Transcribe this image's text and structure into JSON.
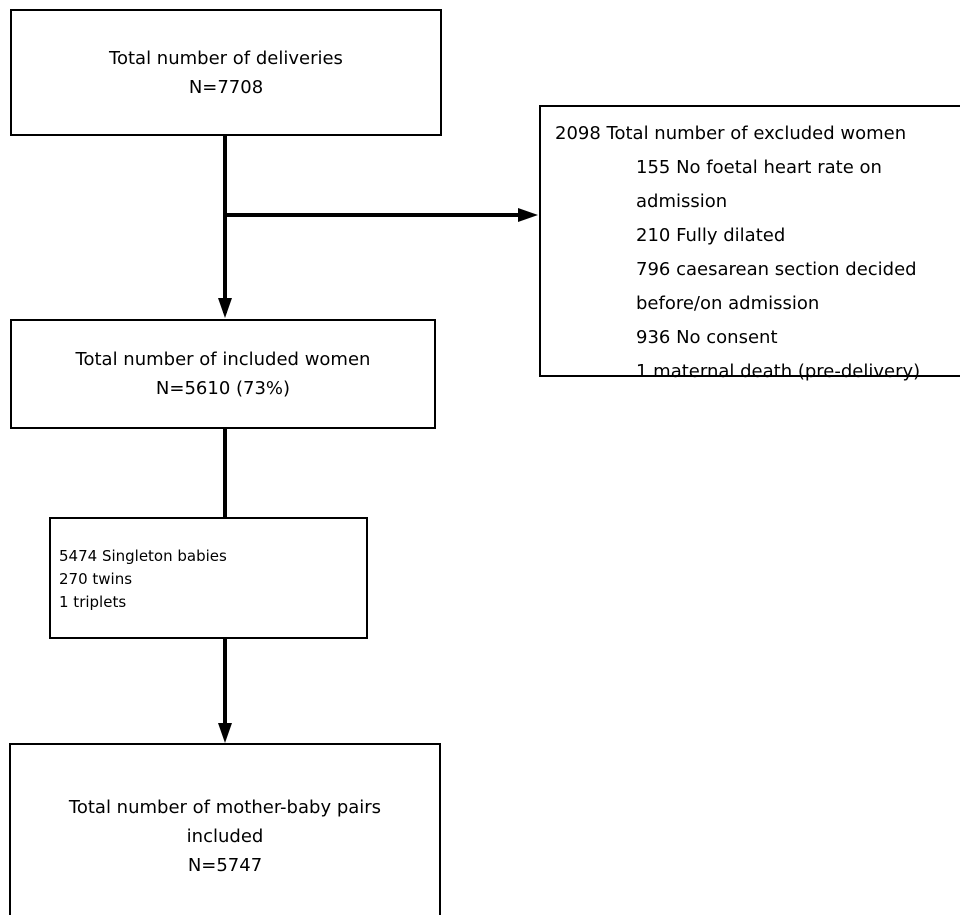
{
  "deliveries": {
    "title": "Total number of deliveries",
    "n": "N=7708"
  },
  "excluded": {
    "title": "2098 Total number of excluded women",
    "reasons": [
      "155 No foetal heart rate on",
      "admission",
      "210 Fully dilated",
      "796 caesarean section decided",
      "before/on admission",
      "936 No consent",
      "1 maternal death (pre-delivery)"
    ]
  },
  "included": {
    "title": "Total number of included women",
    "n": "N=5610 (73%)"
  },
  "babies": {
    "lines": [
      "5474 Singleton babies",
      "270 twins",
      "1 triplets"
    ]
  },
  "pairs": {
    "line1": "Total number of mother-baby pairs",
    "line2": "included",
    "n": "N=5747"
  }
}
